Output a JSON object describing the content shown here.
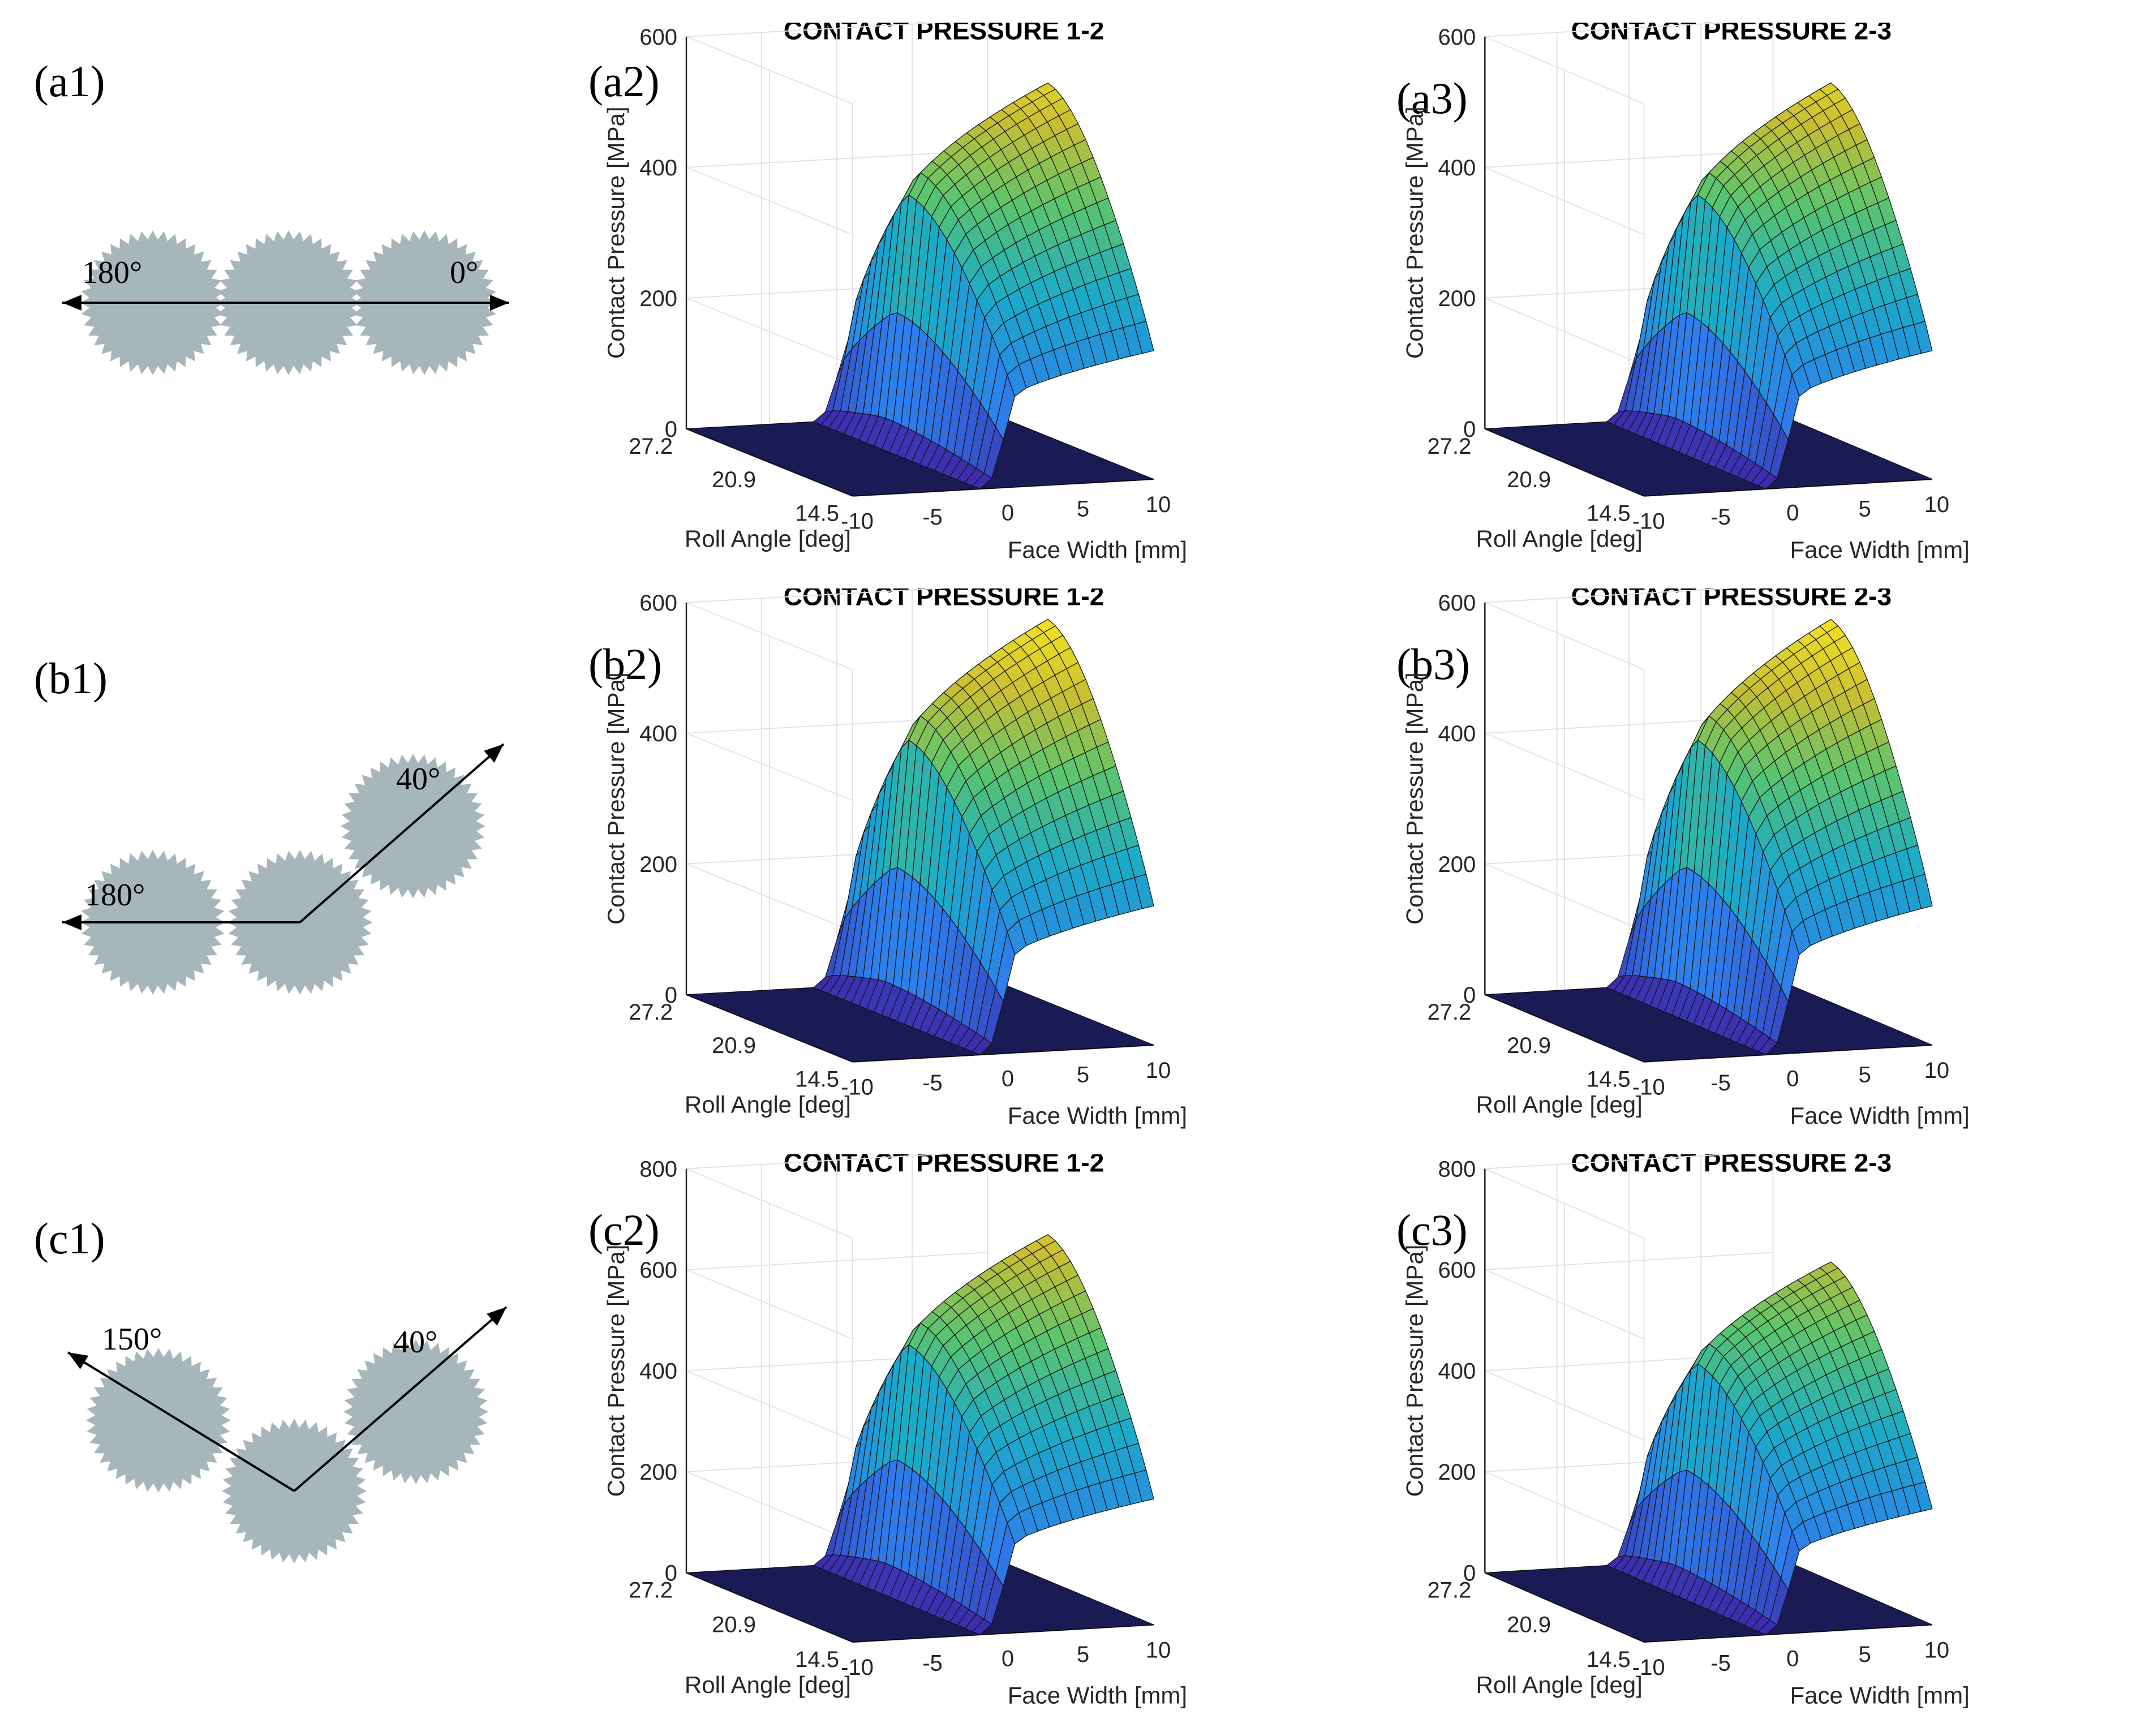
{
  "panel_labels": {
    "a1": "(a1)",
    "b1": "(b1)",
    "c1": "(c1)",
    "a2": "(a2)",
    "a3": "(a3)",
    "b2": "(b2)",
    "b3": "(b3)",
    "c2": "(c2)",
    "c3": "(c3)"
  },
  "diagrams": [
    {
      "name": "a1",
      "angles": [
        "180°",
        "0°"
      ]
    },
    {
      "name": "b1",
      "angles": [
        "180°",
        "40°"
      ]
    },
    {
      "name": "c1",
      "angles": [
        "150°",
        "40°"
      ]
    }
  ],
  "colors": {
    "gear": "#a7b6bb",
    "surface_low": "#3d2a82",
    "surface_mid": "#1fa6a8",
    "surface_high": "#f6e62c",
    "floor": "#1a1a55"
  },
  "chart_data": [
    {
      "type": "surface",
      "panel": "a2",
      "title": "CONTACT PRESSURE 1-2",
      "zlabel": "Contact Pressure [MPa]",
      "xlabel": "Face Width [mm]",
      "ylabel": "Roll Angle [deg]",
      "zticks": [
        "0",
        "200",
        "400",
        "600"
      ],
      "zlim": [
        0,
        600
      ],
      "peak": 600,
      "xticks": [
        "-10",
        "-5",
        "0",
        "5",
        "10"
      ],
      "yticks": [
        "27.2",
        "20.9",
        "14.5"
      ]
    },
    {
      "type": "surface",
      "panel": "a3",
      "title": "CONTACT PRESSURE 2-3",
      "zlabel": "Contact Pressure [MPa]",
      "xlabel": "Face Width [mm]",
      "ylabel": "Roll Angle [deg]",
      "zticks": [
        "0",
        "200",
        "400",
        "600"
      ],
      "zlim": [
        0,
        600
      ],
      "peak": 600,
      "xticks": [
        "-10",
        "-5",
        "0",
        "5",
        "10"
      ],
      "yticks": [
        "27.2",
        "20.9",
        "14.5"
      ]
    },
    {
      "type": "surface",
      "panel": "b2",
      "title": "CONTACT PRESSURE 1-2",
      "zlabel": "Contact Pressure [MPa]",
      "xlabel": "Face Width [mm]",
      "ylabel": "Roll Angle [deg]",
      "zticks": [
        "0",
        "200",
        "400",
        "600"
      ],
      "zlim": [
        0,
        600
      ],
      "peak": 650,
      "xticks": [
        "-10",
        "-5",
        "0",
        "5",
        "10"
      ],
      "yticks": [
        "27.2",
        "20.9",
        "14.5"
      ]
    },
    {
      "type": "surface",
      "panel": "b3",
      "title": "CONTACT PRESSURE 2-3",
      "zlabel": "Contact Pressure [MPa]",
      "xlabel": "Face Width [mm]",
      "ylabel": "Roll Angle [deg]",
      "zticks": [
        "0",
        "200",
        "400",
        "600"
      ],
      "zlim": [
        0,
        600
      ],
      "peak": 650,
      "xticks": [
        "-10",
        "-5",
        "0",
        "5",
        "10"
      ],
      "yticks": [
        "27.2",
        "20.9",
        "14.5"
      ]
    },
    {
      "type": "surface",
      "panel": "c2",
      "title": "CONTACT PRESSURE 1-2",
      "zlabel": "Contact Pressure [MPa]",
      "xlabel": "Face Width [mm]",
      "ylabel": "Roll Angle [deg]",
      "zticks": [
        "0",
        "200",
        "400",
        "600",
        "800"
      ],
      "zlim": [
        0,
        800
      ],
      "peak": 760,
      "xticks": [
        "-10",
        "-5",
        "0",
        "5",
        "10"
      ],
      "yticks": [
        "27.2",
        "20.9",
        "14.5"
      ]
    },
    {
      "type": "surface",
      "panel": "c3",
      "title": "CONTACT PRESSURE 2-3",
      "zlabel": "Contact Pressure [MPa]",
      "xlabel": "Face Width [mm]",
      "ylabel": "Roll Angle [deg]",
      "zticks": [
        "0",
        "200",
        "400",
        "600",
        "800"
      ],
      "zlim": [
        0,
        800
      ],
      "peak": 700,
      "xticks": [
        "-10",
        "-5",
        "0",
        "5",
        "10"
      ],
      "yticks": [
        "27.2",
        "20.9",
        "14.5"
      ]
    }
  ]
}
